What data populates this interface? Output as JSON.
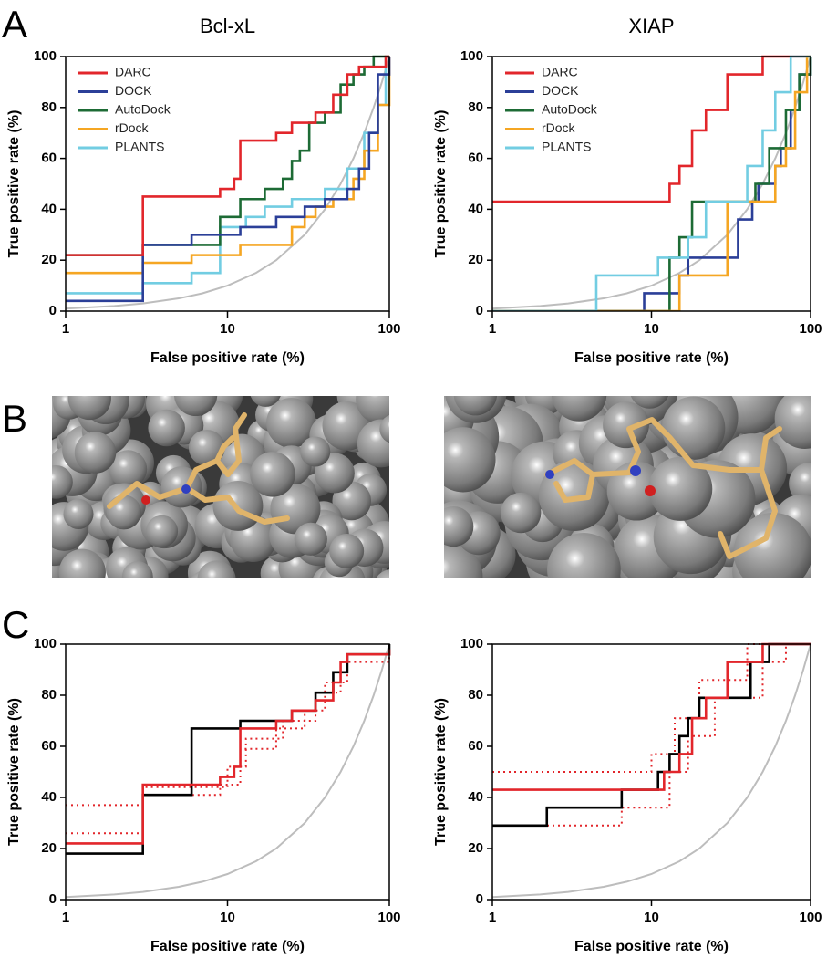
{
  "panel_labels": [
    "A",
    "B",
    "C"
  ],
  "chart_data": [
    {
      "type": "line",
      "title": "Bcl-xL",
      "xlabel": "False positive rate (%)",
      "ylabel": "True positive rate (%)",
      "xlim": [
        1,
        100
      ],
      "ylim": [
        0,
        100
      ],
      "xticks": [
        1,
        10,
        100
      ],
      "yticks": [
        0,
        20,
        40,
        60,
        80,
        100
      ],
      "log_x": true,
      "legend": "upper left",
      "series": [
        {
          "color": "#bdbdbd",
          "x": [
            1,
            2,
            3,
            5,
            7,
            10,
            15,
            20,
            30,
            40,
            50,
            60,
            70,
            80,
            90,
            100
          ],
          "values": [
            1,
            2,
            3,
            5,
            7,
            10,
            15,
            20,
            30,
            40,
            50,
            60,
            70,
            80,
            90,
            100
          ]
        },
        {
          "name": "PLANTS",
          "color": "#72cde2",
          "x": [
            1,
            3,
            3,
            6,
            6,
            9,
            9,
            13,
            13,
            17,
            17,
            25,
            25,
            40,
            40,
            55,
            55,
            70,
            70,
            85,
            85,
            95,
            95,
            100
          ],
          "values": [
            7,
            7,
            11,
            11,
            15,
            15,
            33,
            33,
            37,
            37,
            41,
            41,
            44,
            44,
            48,
            48,
            56,
            56,
            70,
            70,
            81,
            81,
            100,
            100
          ]
        },
        {
          "name": "rDock",
          "color": "#f5a623",
          "x": [
            1,
            3,
            3,
            6,
            6,
            12,
            12,
            25,
            25,
            30,
            30,
            35,
            35,
            45,
            45,
            60,
            60,
            70,
            70,
            85,
            85,
            100,
            100
          ],
          "values": [
            15,
            15,
            19,
            19,
            22,
            22,
            26,
            26,
            33,
            33,
            37,
            37,
            41,
            41,
            44,
            44,
            52,
            52,
            63,
            63,
            81,
            81,
            100
          ]
        },
        {
          "name": "AutoDock",
          "color": "#1d6b35",
          "x": [
            1,
            3,
            3,
            9,
            9,
            12,
            12,
            17,
            17,
            22,
            22,
            25,
            25,
            28,
            28,
            32,
            32,
            40,
            40,
            50,
            50,
            60,
            60,
            70,
            70,
            80,
            80,
            100
          ],
          "values": [
            22,
            22,
            26,
            26,
            37,
            37,
            44,
            44,
            48,
            48,
            52,
            52,
            59,
            59,
            63,
            63,
            74,
            74,
            78,
            78,
            89,
            89,
            93,
            93,
            96,
            96,
            100,
            100
          ]
        },
        {
          "name": "DOCK",
          "color": "#2b3f98",
          "x": [
            1,
            3,
            3,
            6,
            6,
            12,
            12,
            20,
            20,
            30,
            30,
            40,
            40,
            55,
            55,
            65,
            65,
            75,
            75,
            85,
            85,
            100,
            100
          ],
          "values": [
            4,
            4,
            26,
            26,
            30,
            30,
            33,
            33,
            37,
            37,
            41,
            41,
            44,
            44,
            48,
            48,
            56,
            56,
            70,
            70,
            93,
            93,
            100
          ]
        },
        {
          "name": "DARC",
          "color": "#e2262b",
          "x": [
            1,
            3,
            3,
            9,
            9,
            11,
            11,
            12,
            12,
            20,
            20,
            25,
            25,
            35,
            35,
            45,
            45,
            55,
            55,
            65,
            65,
            95,
            95,
            100
          ],
          "values": [
            22,
            22,
            45,
            45,
            48,
            48,
            52,
            52,
            67,
            67,
            70,
            70,
            74,
            74,
            78,
            78,
            85,
            85,
            93,
            93,
            96,
            96,
            100,
            100
          ]
        }
      ]
    },
    {
      "type": "line",
      "title": "XIAP",
      "xlabel": "False positive rate (%)",
      "ylabel": "True positive rate (%)",
      "xlim": [
        1,
        100
      ],
      "ylim": [
        0,
        100
      ],
      "xticks": [
        1,
        10,
        100
      ],
      "yticks": [
        0,
        20,
        40,
        60,
        80,
        100
      ],
      "log_x": true,
      "legend": "upper left",
      "series": [
        {
          "color": "#bdbdbd",
          "x": [
            1,
            2,
            3,
            5,
            7,
            10,
            15,
            20,
            30,
            40,
            50,
            60,
            70,
            80,
            90,
            100
          ],
          "values": [
            1,
            2,
            3,
            5,
            7,
            10,
            15,
            20,
            30,
            40,
            50,
            60,
            70,
            80,
            90,
            100
          ]
        },
        {
          "name": "DARC",
          "color": "#e2262b",
          "x": [
            1,
            13,
            13,
            15,
            15,
            18,
            18,
            22,
            22,
            30,
            30,
            50,
            50,
            100
          ],
          "values": [
            43,
            43,
            50,
            50,
            57,
            57,
            71,
            71,
            79,
            79,
            93,
            93,
            100,
            100
          ]
        },
        {
          "name": "DOCK",
          "color": "#2b3f98",
          "x": [
            1,
            9,
            9,
            15,
            15,
            17,
            17,
            35,
            35,
            43,
            43,
            47,
            47,
            60,
            60,
            65,
            65,
            75,
            75,
            85,
            85,
            100,
            100
          ],
          "values": [
            0,
            0,
            7,
            7,
            14,
            14,
            21,
            21,
            36,
            36,
            43,
            43,
            50,
            50,
            57,
            57,
            64,
            64,
            79,
            79,
            93,
            93,
            100
          ]
        },
        {
          "name": "AutoDock",
          "color": "#1d6b35",
          "x": [
            1,
            13,
            13,
            15,
            15,
            18,
            18,
            45,
            45,
            55,
            55,
            70,
            70,
            85,
            85,
            100,
            100
          ],
          "values": [
            0,
            0,
            21,
            21,
            29,
            29,
            43,
            43,
            50,
            50,
            64,
            64,
            79,
            79,
            93,
            93,
            100
          ]
        },
        {
          "name": "rDock",
          "color": "#f5a623",
          "x": [
            1,
            15,
            15,
            30,
            30,
            60,
            60,
            70,
            70,
            80,
            80,
            95,
            95,
            100
          ],
          "values": [
            0,
            0,
            14,
            14,
            43,
            43,
            57,
            57,
            64,
            64,
            86,
            86,
            100,
            100
          ]
        },
        {
          "name": "PLANTS",
          "color": "#72cde2",
          "x": [
            1,
            4.5,
            4.5,
            11,
            11,
            17,
            17,
            22,
            22,
            40,
            40,
            50,
            50,
            60,
            60,
            75,
            75,
            100
          ],
          "values": [
            0,
            0,
            14,
            14,
            21,
            21,
            29,
            29,
            43,
            43,
            57,
            57,
            71,
            71,
            86,
            86,
            100,
            100
          ]
        }
      ]
    },
    {
      "type": "line",
      "xlabel": "False positive rate (%)",
      "ylabel": "True positive rate (%)",
      "xlim": [
        1,
        100
      ],
      "ylim": [
        0,
        100
      ],
      "xticks": [
        1,
        10,
        100
      ],
      "yticks": [
        0,
        20,
        40,
        60,
        80,
        100
      ],
      "log_x": true,
      "series": [
        {
          "color": "#bdbdbd",
          "x": [
            1,
            2,
            3,
            5,
            7,
            10,
            15,
            20,
            30,
            40,
            50,
            60,
            70,
            80,
            90,
            100
          ],
          "values": [
            1,
            2,
            3,
            5,
            7,
            10,
            15,
            20,
            30,
            40,
            50,
            60,
            70,
            80,
            90,
            100
          ]
        },
        {
          "color": "#e2262b",
          "dash": true,
          "x": [
            1,
            3,
            3,
            9,
            9,
            12,
            12,
            20,
            20,
            30,
            30,
            40,
            40,
            55,
            55,
            100
          ],
          "values": [
            37,
            37,
            41,
            41,
            45,
            45,
            59,
            59,
            67,
            67,
            74,
            74,
            85,
            85,
            96,
            96
          ]
        },
        {
          "color": "#e2262b",
          "dash": true,
          "x": [
            1,
            3,
            3,
            10,
            10,
            13,
            13,
            22,
            22,
            35,
            35,
            50,
            50,
            100,
            100
          ],
          "values": [
            26,
            26,
            44,
            44,
            52,
            52,
            63,
            63,
            70,
            70,
            81,
            81,
            93,
            93,
            100
          ]
        },
        {
          "color": "#000000",
          "x": [
            1,
            3,
            3,
            6,
            6,
            12,
            12,
            25,
            25,
            35,
            35,
            45,
            45,
            55,
            55,
            100,
            100
          ],
          "values": [
            18,
            18,
            41,
            41,
            67,
            67,
            70,
            70,
            74,
            74,
            81,
            81,
            89,
            89,
            96,
            96,
            100
          ]
        },
        {
          "color": "#e2262b",
          "x": [
            1,
            3,
            3,
            9,
            9,
            11,
            11,
            12,
            12,
            20,
            20,
            25,
            25,
            35,
            35,
            45,
            45,
            50,
            50,
            55,
            55,
            100,
            100
          ],
          "values": [
            22,
            22,
            45,
            45,
            48,
            48,
            52,
            52,
            67,
            67,
            70,
            70,
            74,
            74,
            78,
            78,
            85,
            85,
            93,
            93,
            96,
            96,
            98
          ]
        }
      ]
    },
    {
      "type": "line",
      "xlabel": "False positive rate (%)",
      "ylabel": "True positive rate (%)",
      "xlim": [
        1,
        100
      ],
      "ylim": [
        0,
        100
      ],
      "xticks": [
        1,
        10,
        100
      ],
      "yticks": [
        0,
        20,
        40,
        60,
        80,
        100
      ],
      "log_x": true,
      "series": [
        {
          "color": "#bdbdbd",
          "x": [
            1,
            2,
            3,
            5,
            7,
            10,
            15,
            20,
            30,
            40,
            50,
            60,
            70,
            80,
            90,
            100
          ],
          "values": [
            1,
            2,
            3,
            5,
            7,
            10,
            15,
            20,
            30,
            40,
            50,
            60,
            70,
            80,
            90,
            100
          ]
        },
        {
          "color": "#e2262b",
          "dash": true,
          "x": [
            1,
            10,
            10,
            14,
            14,
            20,
            20,
            40,
            40,
            60
          ],
          "values": [
            50,
            50,
            57,
            57,
            71,
            71,
            86,
            86,
            100,
            100
          ]
        },
        {
          "color": "#e2262b",
          "dash": true,
          "x": [
            1,
            6.5,
            6.5,
            13,
            13,
            17,
            17,
            25,
            25,
            50,
            50,
            70,
            70
          ],
          "values": [
            29,
            29,
            36,
            36,
            50,
            50,
            64,
            64,
            79,
            79,
            93,
            93,
            100
          ]
        },
        {
          "color": "#000000",
          "x": [
            1,
            2.2,
            2.2,
            6.5,
            6.5,
            11,
            11,
            13,
            13,
            15,
            15,
            17,
            17,
            20,
            20,
            42,
            42,
            55,
            55,
            100
          ],
          "values": [
            29,
            29,
            36,
            36,
            43,
            43,
            50,
            50,
            57,
            57,
            64,
            64,
            71,
            71,
            79,
            79,
            93,
            93,
            100,
            100
          ]
        },
        {
          "color": "#e2262b",
          "x": [
            1,
            12,
            12,
            15,
            15,
            18,
            18,
            22,
            22,
            30,
            30,
            50,
            50,
            100
          ],
          "values": [
            43,
            43,
            50,
            50,
            57,
            57,
            71,
            71,
            79,
            79,
            93,
            93,
            100,
            100
          ]
        }
      ]
    }
  ]
}
